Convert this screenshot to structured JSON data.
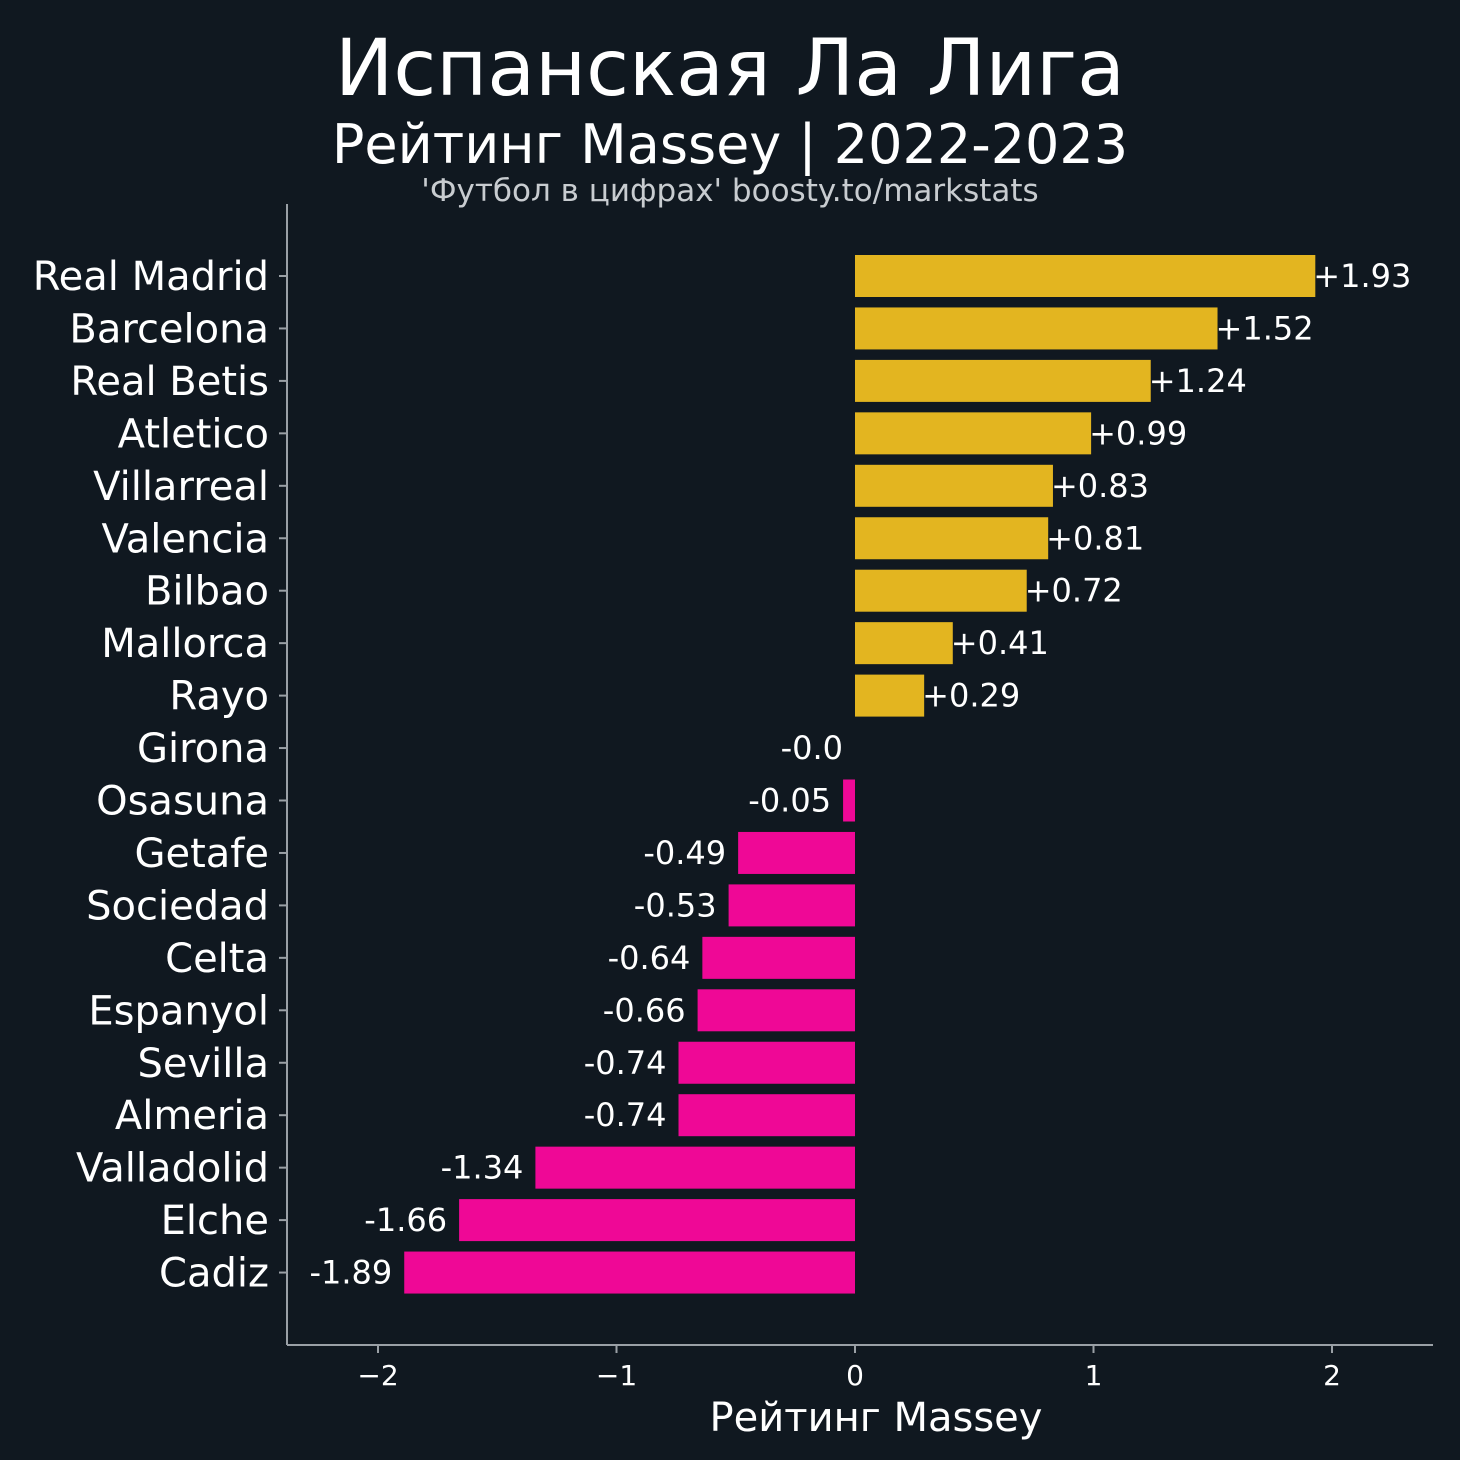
{
  "chart_data": {
    "type": "bar",
    "orientation": "horizontal",
    "title": "Испанская Ла Лига",
    "subtitle": "Рейтинг Massey | 2022-2023",
    "source": "'Футбол в цифрах' boosty.to/markstats",
    "xlabel": "Рейтинг Massey",
    "ylabel": "",
    "xlim": [
      -2.4,
      2.4
    ],
    "xticks": [
      -2,
      -1,
      0,
      1,
      2
    ],
    "xtick_labels": [
      "−2",
      "−1",
      "0",
      "1",
      "2"
    ],
    "grid": false,
    "colors": {
      "background": "#101820",
      "positive": "#e3b520",
      "negative": "#ef0896",
      "text": "#ffffff",
      "axis": "#9aa0a6"
    },
    "categories": [
      "Real Madrid",
      "Barcelona",
      "Real Betis",
      "Atletico",
      "Villarreal",
      "Valencia",
      "Bilbao",
      "Mallorca",
      "Rayo",
      "Girona",
      "Osasuna",
      "Getafe",
      "Sociedad",
      "Celta",
      "Espanyol",
      "Sevilla",
      "Almeria",
      "Valladolid",
      "Elche",
      "Cadiz"
    ],
    "values": [
      1.93,
      1.52,
      1.24,
      0.99,
      0.83,
      0.81,
      0.72,
      0.41,
      0.29,
      0.0,
      -0.05,
      -0.49,
      -0.53,
      -0.64,
      -0.66,
      -0.74,
      -0.74,
      -1.34,
      -1.66,
      -1.89
    ],
    "value_labels": [
      "+1.93",
      "+1.52",
      "+1.24",
      "+0.99",
      "+0.83",
      "+0.81",
      "+0.72",
      "+0.41",
      "+0.29",
      "-0.0",
      "-0.05",
      "-0.49",
      "-0.53",
      "-0.64",
      "-0.66",
      "-0.74",
      "-0.74",
      "-1.34",
      "-1.66",
      "-1.89"
    ]
  }
}
